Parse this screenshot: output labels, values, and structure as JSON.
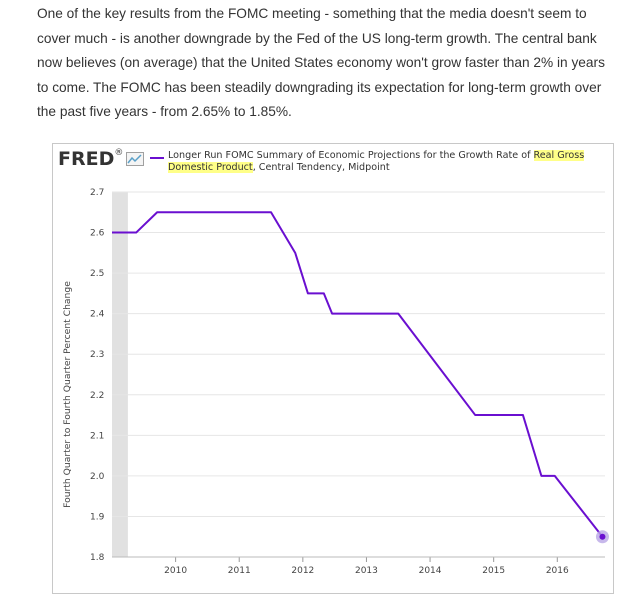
{
  "article": {
    "paragraph": "One of the key results from the FOMC meeting - something that the media doesn't seem to cover much - is another downgrade by the Fed of the US long-term growth. The central bank now believes (on average) that the United States economy won't grow faster than 2% in years to come. The FOMC has been steadily downgrading its expectation for long-term growth over the past five years - from 2.65% to 1.85%."
  },
  "fred": {
    "logo": "FRED",
    "logo_mark": "®",
    "logo_icon": "line-chart-icon"
  },
  "chart_data": {
    "type": "line",
    "legend": {
      "pre": "Longer Run FOMC Summary of Economic Projections for the Growth Rate of ",
      "highlight": "Real Gross Domestic Product",
      "post": ", Central Tendency, Midpoint"
    },
    "ylabel": "Fourth Quarter to Fourth Quarter Percent Change",
    "xlabel": "",
    "xlim": [
      2009.0,
      2016.75
    ],
    "ylim": [
      1.8,
      2.7
    ],
    "x_ticks": [
      "2010",
      "2011",
      "2012",
      "2013",
      "2014",
      "2015",
      "2016"
    ],
    "y_ticks": [
      "1.8",
      "1.9",
      "2.0",
      "2.1",
      "2.2",
      "2.3",
      "2.4",
      "2.5",
      "2.6",
      "2.7"
    ],
    "recession_shade": [
      2009.0,
      2009.25
    ],
    "series": [
      {
        "color": "#6a0fd0",
        "x": [
          2009.0,
          2009.38,
          2009.71,
          2011.5,
          2011.88,
          2012.08,
          2012.33,
          2012.46,
          2013.5,
          2014.71,
          2015.46,
          2015.75,
          2015.96,
          2016.71
        ],
        "y": [
          2.6,
          2.6,
          2.65,
          2.65,
          2.55,
          2.45,
          2.45,
          2.4,
          2.4,
          2.15,
          2.15,
          2.0,
          2.0,
          1.85
        ]
      }
    ],
    "grid": true
  }
}
